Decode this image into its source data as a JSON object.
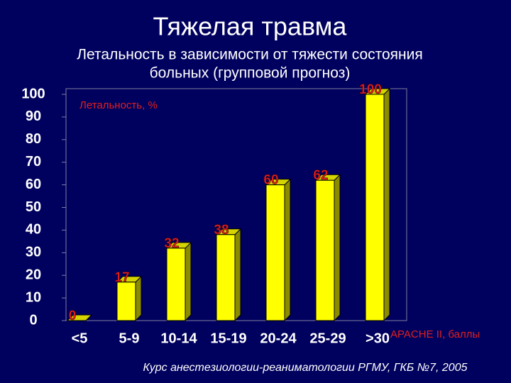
{
  "chart_data": {
    "type": "bar3d",
    "title": "Тяжелая травма",
    "subtitle": [
      "Летальность в зависимости от тяжести состояния",
      "больных (групповой прогноз)"
    ],
    "y_label": "Летальность, %",
    "x_label": "APACHE II, баллы",
    "footer": "Курс анестезиологии-реаниматологии РГМУ, ГКБ №7, 2005",
    "categories": [
      "<5",
      "5-9",
      "10-14",
      "15-19",
      "20-24",
      "25-29",
      ">30"
    ],
    "values": [
      0,
      17,
      32,
      38,
      60,
      62,
      100
    ],
    "color": "#ffff00",
    "ylim": [
      0,
      100
    ],
    "yticks": [
      0,
      10,
      20,
      30,
      40,
      50,
      60,
      70,
      80,
      90,
      100
    ]
  }
}
